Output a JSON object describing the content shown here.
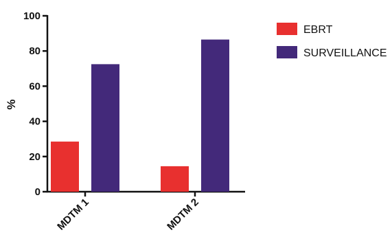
{
  "chart_data": {
    "type": "bar",
    "categories": [
      "MDTM 1",
      "MDTM 2"
    ],
    "series": [
      {
        "name": "EBRT",
        "values": [
          28.5,
          14.5
        ],
        "color": "#e8302f"
      },
      {
        "name": "SURVEILLANCE",
        "values": [
          72.5,
          86.5
        ],
        "color": "#43297a"
      }
    ],
    "ylabel": "%",
    "ylim": [
      0,
      100
    ],
    "yticks": [
      0,
      20,
      40,
      60,
      80,
      100
    ],
    "grid": false,
    "legend": "top-right"
  }
}
